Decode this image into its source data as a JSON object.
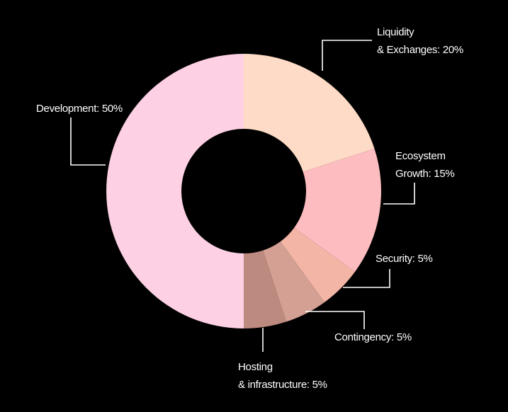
{
  "chart_data": {
    "type": "donut",
    "categories": [
      [
        "Liquidity",
        "& Exchanges: 20%"
      ],
      [
        "Ecosystem",
        "Growth: 15%"
      ],
      [
        "Security: 5%"
      ],
      [
        "Contingency: 5%"
      ],
      [
        "Hosting",
        "& infrastructure: 5%"
      ],
      [
        "Development: 50%"
      ]
    ],
    "values": [
      20,
      15,
      5,
      5,
      5,
      50
    ],
    "colors": [
      "#fedbc6",
      "#fdbcbf",
      "#f3b5a6",
      "#d4a093",
      "#bd8a80",
      "#fdd0e4"
    ]
  }
}
